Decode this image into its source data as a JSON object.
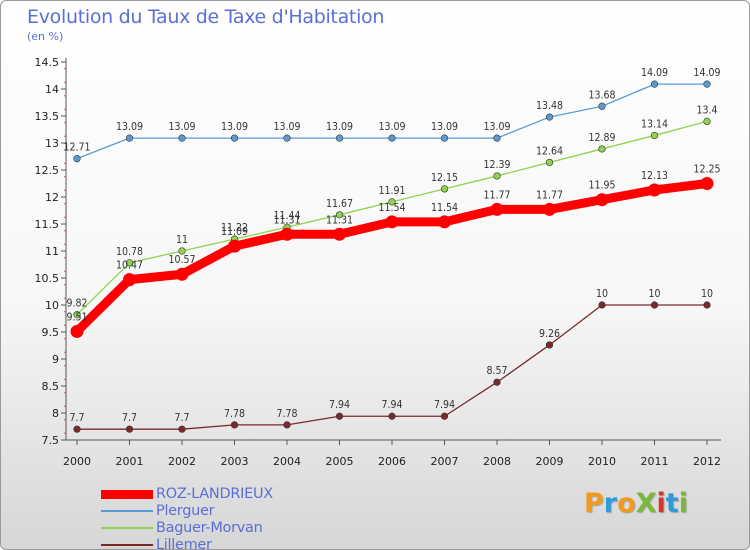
{
  "title": "Evolution du Taux de Taxe d'Habitation",
  "subtitle": "(en %)",
  "logo": {
    "text": "ProXiti",
    "colors": [
      "#f29a1d",
      "#2e9bd6",
      "#f29a1d",
      "#7ab83c",
      "#d6352c",
      "#2e9bd6",
      "#7ab83c"
    ]
  },
  "chart_data": {
    "type": "line",
    "x": [
      "2000",
      "2001",
      "2002",
      "2003",
      "2004",
      "2005",
      "2006",
      "2007",
      "2008",
      "2009",
      "2010",
      "2011",
      "2012"
    ],
    "ylim": [
      7.5,
      14.5
    ],
    "yticks": [
      "7.5",
      "8",
      "8.5",
      "9",
      "9.5",
      "10",
      "10.5",
      "11",
      "11.5",
      "12",
      "12.5",
      "13",
      "13.5",
      "14",
      "14.5"
    ],
    "grid": false,
    "legend": "bottom-left",
    "series": [
      {
        "name": "ROZ-LANDRIEUX",
        "color": "#ff0000",
        "emphasis": true,
        "values": [
          9.51,
          10.47,
          10.57,
          11.09,
          11.31,
          11.31,
          11.54,
          11.54,
          11.77,
          11.77,
          11.95,
          12.13,
          12.25
        ],
        "labels": [
          "9.51",
          "10.47",
          "10.57",
          "11.09",
          "11.31",
          "11.31",
          "11.54",
          "11.54",
          "11.77",
          "11.77",
          "11.95",
          "12.13",
          "12.25"
        ]
      },
      {
        "name": "Plerguer",
        "color": "#5b9bd5",
        "values": [
          12.71,
          13.09,
          13.09,
          13.09,
          13.09,
          13.09,
          13.09,
          13.09,
          13.09,
          13.48,
          13.68,
          14.09,
          14.09
        ],
        "labels": [
          "12.71",
          "13.09",
          "13.09",
          "13.09",
          "13.09",
          "13.09",
          "13.09",
          "13.09",
          "13.09",
          "13.48",
          "13.68",
          "14.09",
          "14.09"
        ]
      },
      {
        "name": "Baguer-Morvan",
        "color": "#8fd34e",
        "values": [
          9.82,
          10.78,
          11,
          11.22,
          11.44,
          11.67,
          11.91,
          12.15,
          12.39,
          12.64,
          12.89,
          13.14,
          13.4
        ],
        "labels": [
          "9.82",
          "10.78",
          "11",
          "11.22",
          "11.44",
          "11.67",
          "11.91",
          "12.15",
          "12.39",
          "12.64",
          "12.89",
          "13.14",
          "13.4"
        ]
      },
      {
        "name": "Lillemer",
        "color": "#7a2a2a",
        "values": [
          7.7,
          7.7,
          7.7,
          7.78,
          7.78,
          7.94,
          7.94,
          7.94,
          8.57,
          9.26,
          10,
          10,
          10
        ],
        "labels": [
          "7.7",
          "7.7",
          "7.7",
          "7.78",
          "7.78",
          "7.94",
          "7.94",
          "7.94",
          "8.57",
          "9.26",
          "10",
          "10",
          "10"
        ]
      }
    ]
  }
}
